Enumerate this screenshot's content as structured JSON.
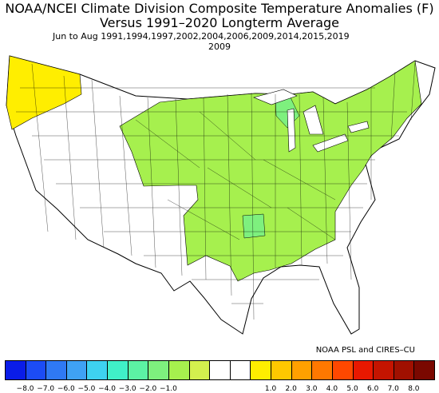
{
  "title": {
    "line1": "NOAA/NCEI Climate Division Composite Temperature Anomalies (F)",
    "line2": "Versus 1991–2020 Longterm Average",
    "subtitle": "Jun to Aug   1991,1994,1997,2002,2004,2006,2009,2014,2015,2019",
    "year": "2009"
  },
  "credit": "NOAA PSL and CIRES–CU",
  "legend": {
    "colors": [
      "#0a1ce8",
      "#1c4cf5",
      "#2f79f4",
      "#3fa2f4",
      "#3ed2f0",
      "#40f0c8",
      "#5cf2a4",
      "#7ef07e",
      "#a6f04e",
      "#d4f04e",
      "#ffffff",
      "#ffffff",
      "#ffee00",
      "#ffc800",
      "#ffa000",
      "#ff7800",
      "#ff4800",
      "#e81800",
      "#c41400",
      "#a01000",
      "#7a0800"
    ],
    "tick_labels": [
      "−8.0",
      "−7.0",
      "−6.0",
      "−5.0",
      "−4.0",
      "−3.0",
      "−2.0",
      "−1.0",
      "1.0",
      "2.0",
      "3.0",
      "4.0",
      "5.0",
      "6.0",
      "7.0",
      "8.0"
    ],
    "bins_text": "Anomaly bins of 0.5 F"
  },
  "map": {
    "fill_warm_small": "#ffee00",
    "fill_cool_small": "#a6f04e",
    "fill_cool_medium": "#7ef07e",
    "fill_neutral": "#ffffff"
  }
}
